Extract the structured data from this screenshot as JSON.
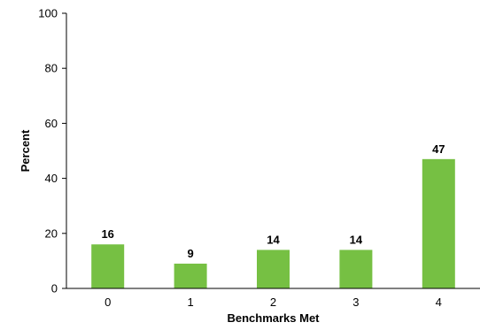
{
  "chart_data": {
    "type": "bar",
    "categories": [
      "0",
      "1",
      "2",
      "3",
      "4"
    ],
    "values": [
      16,
      9,
      14,
      14,
      47
    ],
    "data_labels": [
      "16",
      "9",
      "14",
      "14",
      "47"
    ],
    "xlabel": "Benchmarks Met",
    "ylabel": "Percent",
    "ylim": [
      0,
      100
    ],
    "yticks": [
      0,
      20,
      40,
      60,
      80,
      100
    ],
    "ytick_labels": [
      "0",
      "20",
      "40",
      "60",
      "80",
      "100"
    ],
    "grid": false,
    "legend": "none",
    "colors": {
      "bar": "#76c043",
      "axis": "#000000",
      "text": "#000000"
    }
  }
}
